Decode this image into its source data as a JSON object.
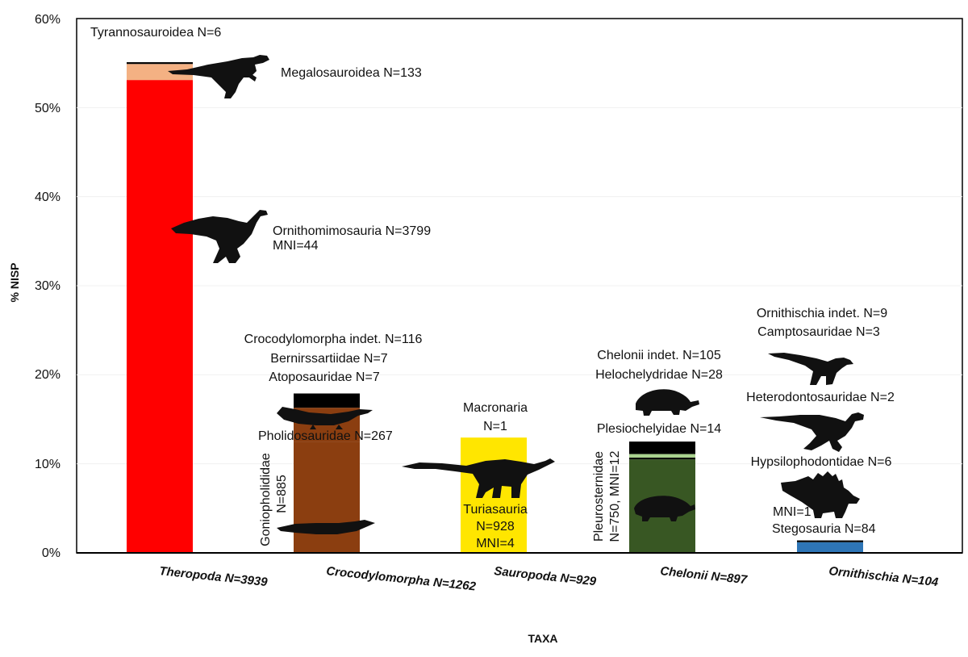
{
  "colors": {
    "theropod_main": "#ff0000",
    "theropod_top": "#f4b183",
    "croc_main": "#8b3e10",
    "croc_top": "#000000",
    "sauropod": "#ffe600",
    "chelonii_main": "#385723",
    "chelonii_mid": "#a9d18e",
    "chelonii_top": "#000000",
    "ornithischia_main": "#2e75b6",
    "ornithischia_top": "#000000"
  },
  "chart_data": {
    "type": "bar",
    "title": "",
    "xlabel": "TAXA",
    "ylabel": "% NISP",
    "ylim": [
      0,
      60
    ],
    "yticks": [
      "0%",
      "10%",
      "20%",
      "30%",
      "40%",
      "50%",
      "60%"
    ],
    "grid": true,
    "categories": [
      "Theropoda N=3939",
      "Crocodylomorpha N=1262",
      "Sauropoda N=929",
      "Chelonii N=897",
      "Ornithischia  N=104"
    ],
    "stacks": [
      {
        "category": "Theropoda N=3939",
        "segments": [
          {
            "name": "Ornithomimosauria",
            "value": 53.1,
            "color": "theropod_main"
          },
          {
            "name": "Megalosauroidea",
            "value": 1.8,
            "color": "theropod_top"
          },
          {
            "name": "Tyrannosauroidea",
            "value": 0.2,
            "color": "croc_top"
          }
        ]
      },
      {
        "category": "Crocodylomorpha N=1262",
        "segments": [
          {
            "name": "Goniopholididae",
            "value": 12.5,
            "color": "croc_main"
          },
          {
            "name": "Pholidosauridae",
            "value": 3.8,
            "color": "croc_main"
          },
          {
            "name": "Crocodylomorpha indet. / Bernirssartiidae / Atoposauridae",
            "value": 1.6,
            "color": "croc_top"
          }
        ]
      },
      {
        "category": "Sauropoda N=929",
        "segments": [
          {
            "name": "Turiasauria",
            "value": 12.9,
            "color": "sauropod"
          },
          {
            "name": "Macronaria",
            "value": 0.05,
            "color": "sauropod"
          }
        ]
      },
      {
        "category": "Chelonii N=897",
        "segments": [
          {
            "name": "Pleurosternidae",
            "value": 10.5,
            "color": "chelonii_main"
          },
          {
            "name": "Plesiochelyidae",
            "value": 0.2,
            "color": "chelonii_top"
          },
          {
            "name": "Helochelydridae",
            "value": 0.4,
            "color": "chelonii_mid"
          },
          {
            "name": "Chelonii indet.",
            "value": 1.4,
            "color": "chelonii_top"
          }
        ]
      },
      {
        "category": "Ornithischia  N=104",
        "segments": [
          {
            "name": "Stegosauria",
            "value": 1.2,
            "color": "ornithischia_main"
          },
          {
            "name": "Other ornithischians",
            "value": 0.2,
            "color": "ornithischia_top"
          }
        ]
      }
    ],
    "annotations": [
      "Tyrannosauroidea N=6",
      "Megalosauroidea N=133",
      "Ornithomimosauria N=3799",
      "MNI=44",
      "Crocodylomorpha indet. N=116",
      "Bernirssartiidae N=7",
      "Atoposauridae N=7",
      "Pholidosauridae N=267",
      "Goniopholididae",
      "N=885",
      "Macronaria",
      "N=1",
      "Turiasauria",
      "N=928",
      "MNI=4",
      "Chelonii indet. N=105",
      "Helochelydridae N=28",
      "Plesiochelyidae N=14",
      "Pleurosternidae",
      "N=750, MNI=12",
      "Ornithischia indet. N=9",
      "Camptosauridae N=3",
      "Heterodontosauridae N=2",
      "Hypsilophodontidae N=6",
      "MNI=1",
      "Stegosauria N=84"
    ]
  },
  "silhouettes": [
    "theropod-megalosaur-icon",
    "ornithomimid-icon",
    "croc-long-snout-icon",
    "croc-goniopholid-icon",
    "sauropod-icon",
    "turtle-high-shell-icon",
    "turtle-low-shell-icon",
    "camptosaur-icon",
    "heterodontosaur-icon",
    "stegosaur-icon"
  ]
}
